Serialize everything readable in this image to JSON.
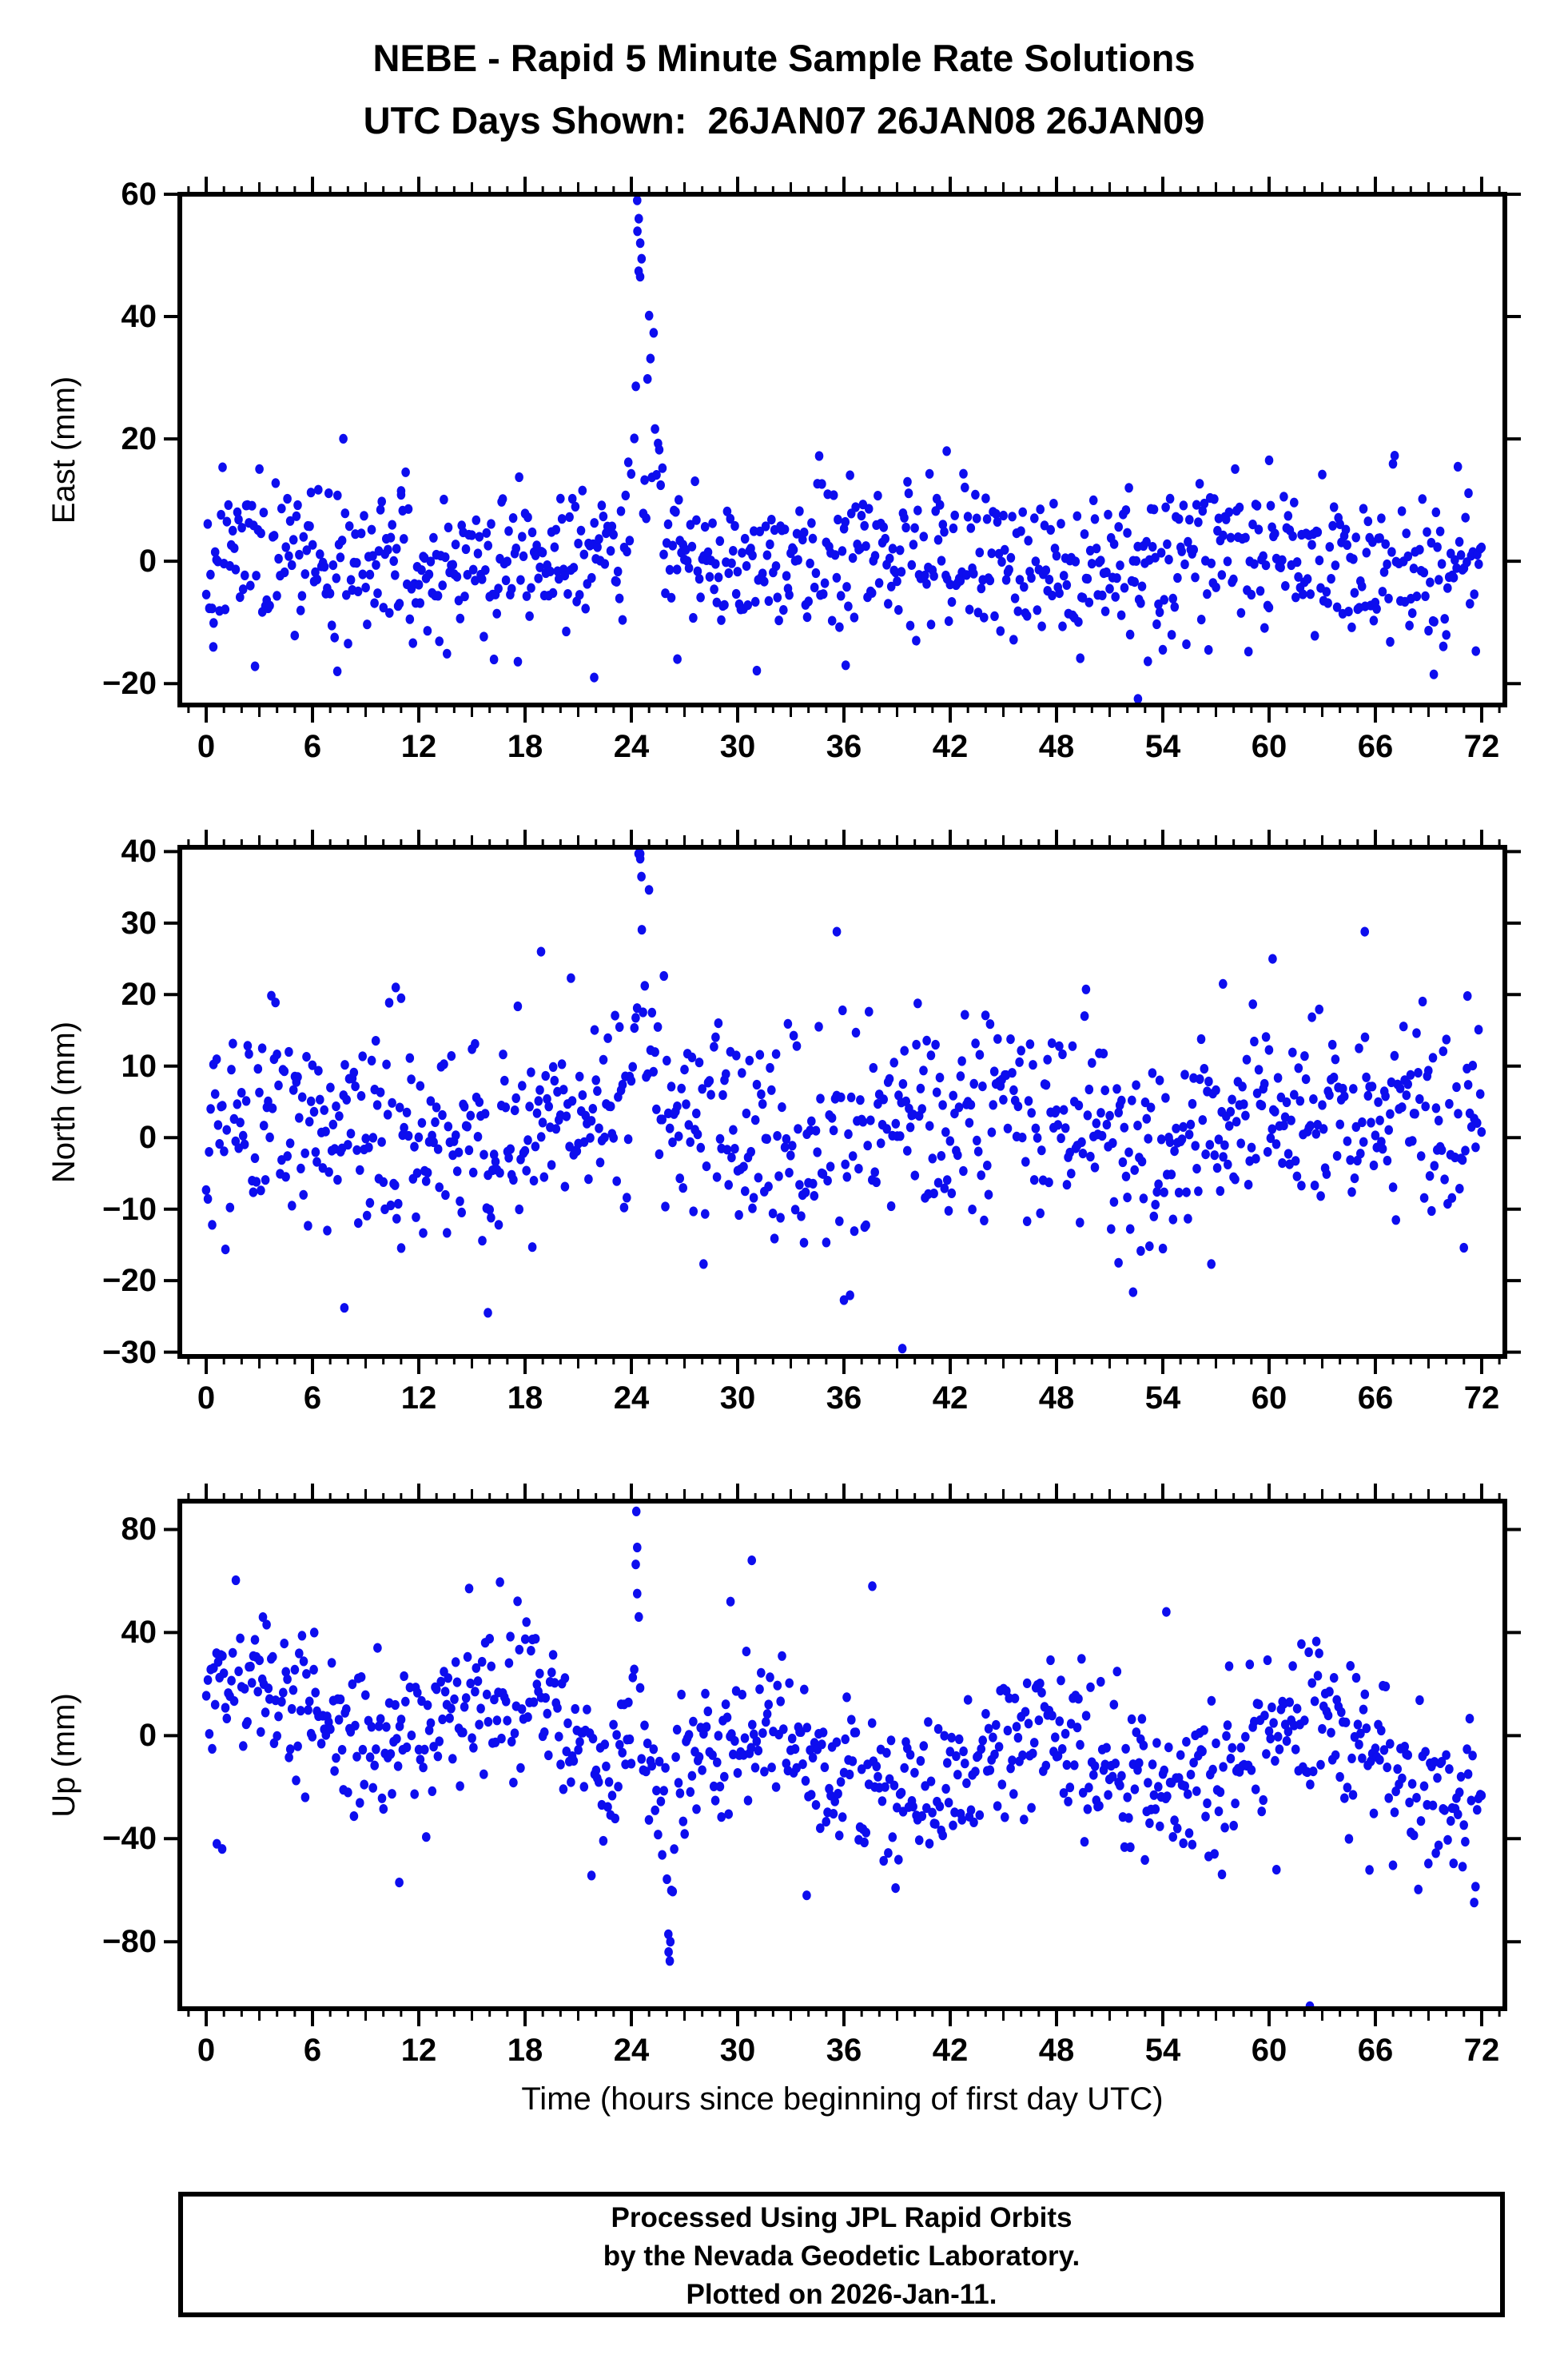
{
  "header": {
    "title_line1": "NEBE - Rapid 5 Minute Sample Rate Solutions",
    "title_line2": "UTC Days Shown:  26JAN07 26JAN08 26JAN09"
  },
  "footer_box": {
    "line1": "Processed Using JPL Rapid Orbits",
    "line2": "by the Nevada Geodetic Laboratory.",
    "line3": "Plotted on 2026-Jan-11."
  },
  "chart_data": {
    "type": "scatter",
    "title": "NEBE - Rapid 5 Minute Sample Rate Solutions",
    "subtitle": "UTC Days Shown:  26JAN07 26JAN08 26JAN09",
    "grid": false,
    "legend": "none",
    "marker": {
      "shape": "circle",
      "color": "#0d0dee",
      "radius_px": 5.7
    },
    "frame_color": "#000000",
    "x_axis": {
      "label": "Time (hours since beginning of first day UTC)",
      "range": [
        -1.49,
        73.31
      ],
      "major_ticks": [
        0,
        6,
        12,
        18,
        24,
        30,
        36,
        42,
        48,
        54,
        60,
        66,
        72
      ],
      "minor_tick_hours": 1,
      "medium_tick_hours": 3,
      "sample_interval_hours": 0.08333
    },
    "panels": [
      {
        "id": "east",
        "ylabel": "East (mm)",
        "y_range": [
          -23.5,
          60
        ],
        "y_ticks": [
          -20,
          0,
          20,
          40,
          60
        ],
        "model": {
          "seed": 11,
          "sigma": 6.2,
          "base": 0,
          "drift_mm_per_hour": 0,
          "waves": [
            [
              1.5,
              0.35,
              0
            ]
          ],
          "events": [
            {
              "type": "gauss",
              "center": 24.45,
              "width": 0.3,
              "amp": 54
            },
            {
              "type": "decay",
              "start": 24.9,
              "end": 26.9,
              "amp": 34,
              "tau": 0.55
            }
          ],
          "dropout": 0.015
        },
        "notable_points": [
          [
            24.33,
            59
          ],
          [
            24.42,
            56
          ],
          [
            24.5,
            52
          ],
          [
            52.6,
            -22.5
          ],
          [
            7.4,
            -18
          ],
          [
            69.3,
            -18.5
          ],
          [
            21.9,
            -19
          ],
          [
            26.6,
            -16
          ],
          [
            0.4,
            -14
          ],
          [
            36.1,
            -17
          ],
          [
            60.0,
            16.5
          ],
          [
            41.8,
            18
          ],
          [
            34.6,
            17.2
          ],
          [
            11.0,
            11.5
          ]
        ]
      },
      {
        "id": "north",
        "ylabel": "North (mm)",
        "y_range": [
          -30.6,
          40.6
        ],
        "y_ticks": [
          -30,
          -20,
          -10,
          0,
          10,
          20,
          30,
          40
        ],
        "model": {
          "seed": 23,
          "sigma": 6.8,
          "base": 1.2,
          "drift_mm_per_hour": 0,
          "waves": [
            [
              2.5,
              0.3,
              1.0
            ]
          ],
          "events": [
            {
              "type": "gauss",
              "center": 24.5,
              "width": 0.28,
              "amp": 31
            },
            {
              "type": "decay",
              "start": 24.85,
              "end": 26.3,
              "amp": 16,
              "tau": 0.5
            }
          ],
          "dropout": 0.015
        },
        "notable_points": [
          [
            24.5,
            39
          ],
          [
            24.57,
            36.5
          ],
          [
            18.9,
            26
          ],
          [
            35.6,
            28.8
          ],
          [
            65.4,
            28.8
          ],
          [
            39.3,
            -29.5
          ],
          [
            7.8,
            -23.8
          ],
          [
            15.9,
            -24.5
          ],
          [
            51.5,
            -17.5
          ],
          [
            57.4,
            21.5
          ],
          [
            71.2,
            19.8
          ],
          [
            10.7,
            21
          ],
          [
            11.0,
            19.5
          ],
          [
            60.2,
            25
          ]
        ]
      },
      {
        "id": "up",
        "ylabel": "Up (mm)",
        "y_range": [
          -106,
          91
        ],
        "y_ticks": [
          -80,
          -40,
          0,
          40,
          80
        ],
        "model": {
          "seed": 37,
          "sigma": 15,
          "base": 5,
          "drift_mm_per_hour": -0.32,
          "waves": [
            [
              13,
              0.42,
              0.8
            ],
            [
              7,
              0.13,
              0
            ]
          ],
          "events": [
            {
              "type": "gauss",
              "center": 24.3,
              "width": 0.17,
              "amp": 82
            },
            {
              "type": "gauss",
              "center": 26.15,
              "width": 0.22,
              "amp": -68
            }
          ],
          "dropout": 0.015
        },
        "notable_points": [
          [
            24.28,
            87
          ],
          [
            24.33,
            73
          ],
          [
            26.1,
            -84
          ],
          [
            26.2,
            -80
          ],
          [
            62.3,
            -105
          ],
          [
            30.8,
            68
          ],
          [
            37.6,
            58
          ],
          [
            0.6,
            -42
          ],
          [
            0.9,
            -44
          ],
          [
            10.9,
            -57
          ],
          [
            33.9,
            -62
          ],
          [
            54.2,
            48
          ],
          [
            3.2,
            46
          ],
          [
            6.1,
            40
          ],
          [
            29.6,
            52
          ]
        ]
      }
    ]
  }
}
